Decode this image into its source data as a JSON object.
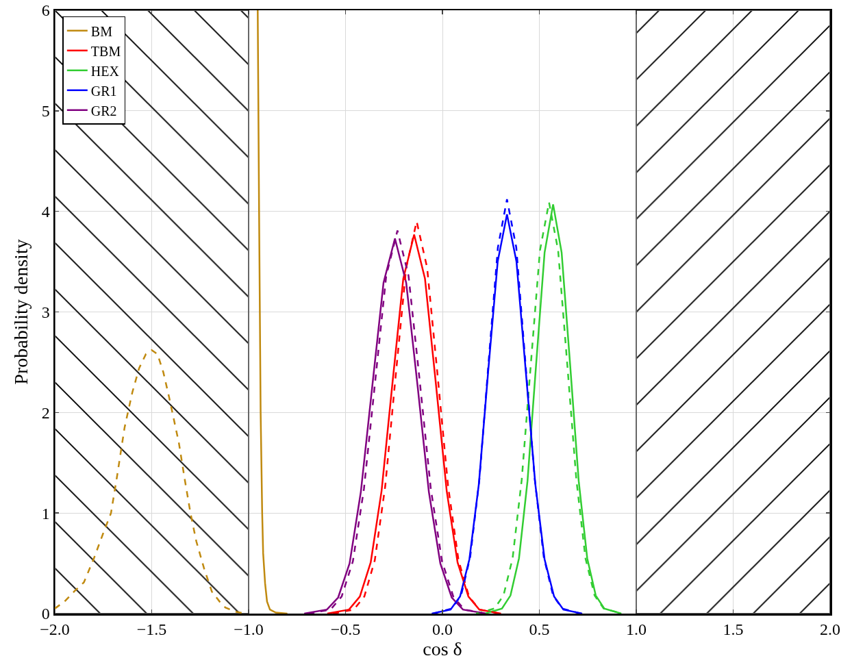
{
  "chart_data": {
    "type": "line",
    "xlabel": "cos δ",
    "ylabel": "Probability density",
    "xlim": [
      -2,
      2
    ],
    "ylim": [
      0,
      6
    ],
    "xticks": [
      {
        "value": -2,
        "label": "−2.0"
      },
      {
        "value": -1.5,
        "label": "−1.5"
      },
      {
        "value": -1,
        "label": "−1.0"
      },
      {
        "value": -0.5,
        "label": "−0.5"
      },
      {
        "value": 0,
        "label": "0.0"
      },
      {
        "value": 0.5,
        "label": "0.5"
      },
      {
        "value": 1,
        "label": "1.0"
      },
      {
        "value": 1.5,
        "label": "1.5"
      },
      {
        "value": 2,
        "label": "2.0"
      }
    ],
    "yticks": [
      0,
      1,
      2,
      3,
      4,
      5,
      6
    ],
    "grid": true,
    "legend": "top left",
    "marker": "none",
    "bands": [
      {
        "axis": "x",
        "from": -2,
        "to": -1,
        "color": "#000000"
      },
      {
        "axis": "x",
        "from": 1,
        "to": 2,
        "color": "#000000"
      }
    ],
    "series": [
      {
        "name": "BM",
        "color": "#c08a10",
        "line_style": "solid",
        "x": [
          -0.953,
          -0.946,
          -0.938,
          -0.93,
          -0.925,
          -0.915,
          -0.905,
          -0.89,
          -0.86,
          -0.8
        ],
        "values": [
          6.0,
          4.0,
          2.0,
          1.0,
          0.6,
          0.3,
          0.12,
          0.04,
          0.01,
          0
        ]
      },
      {
        "name": "TBM",
        "color": "#ff0000",
        "line_style": "solid",
        "x": [
          -0.594,
          -0.482,
          -0.426,
          -0.37,
          -0.314,
          -0.258,
          -0.202,
          -0.146,
          -0.09,
          -0.034,
          0.022,
          0.078,
          0.134,
          0.19,
          0.302
        ],
        "values": [
          0,
          0.04,
          0.17,
          0.51,
          1.22,
          2.29,
          3.33,
          3.77,
          3.33,
          2.29,
          1.22,
          0.51,
          0.17,
          0.04,
          0
        ]
      },
      {
        "name": "HEX",
        "color": "#32cd32",
        "line_style": "solid",
        "x": [
          0.219,
          0.307,
          0.351,
          0.395,
          0.439,
          0.483,
          0.527,
          0.571,
          0.615,
          0.659,
          0.703,
          0.747,
          0.791,
          0.835,
          0.923
        ],
        "values": [
          0,
          0.05,
          0.18,
          0.55,
          1.32,
          2.47,
          3.59,
          4.07,
          3.59,
          2.47,
          1.32,
          0.55,
          0.18,
          0.05,
          0
        ]
      },
      {
        "name": "GR1",
        "color": "#0000ff",
        "line_style": "solid",
        "x": [
          -0.055,
          0.042,
          0.091,
          0.139,
          0.188,
          0.236,
          0.285,
          0.333,
          0.382,
          0.43,
          0.479,
          0.527,
          0.576,
          0.624,
          0.721
        ],
        "values": [
          0,
          0.04,
          0.17,
          0.54,
          1.29,
          2.41,
          3.5,
          3.97,
          3.5,
          2.41,
          1.29,
          0.54,
          0.17,
          0.04,
          0
        ]
      },
      {
        "name": "GR2",
        "color": "#800080",
        "line_style": "solid",
        "x": [
          -0.713,
          -0.596,
          -0.538,
          -0.479,
          -0.421,
          -0.362,
          -0.304,
          -0.245,
          -0.187,
          -0.128,
          -0.07,
          -0.011,
          0.048,
          0.106,
          0.223
        ],
        "values": [
          0,
          0.04,
          0.16,
          0.5,
          1.21,
          2.26,
          3.29,
          3.73,
          3.29,
          2.26,
          1.21,
          0.5,
          0.16,
          0.04,
          0
        ]
      },
      {
        "color": "#c08a10",
        "line_style": "dashed",
        "x": [
          -2.0,
          -1.95,
          -1.9,
          -1.85,
          -1.8,
          -1.75,
          -1.71,
          -1.68,
          -1.64,
          -1.6,
          -1.565,
          -1.53,
          -1.5,
          -1.47,
          -1.44,
          -1.41,
          -1.36,
          -1.33,
          -1.3,
          -1.27,
          -1.23,
          -1.19,
          -1.15,
          -1.12,
          -1.07,
          -1.02
        ],
        "values": [
          0.05,
          0.12,
          0.22,
          0.31,
          0.54,
          0.8,
          1.0,
          1.35,
          1.85,
          2.2,
          2.44,
          2.58,
          2.62,
          2.58,
          2.4,
          2.15,
          1.7,
          1.34,
          1.0,
          0.72,
          0.45,
          0.22,
          0.12,
          0.06,
          0.02,
          0
        ]
      },
      {
        "color": "#ff0000",
        "line_style": "dashed",
        "x": [
          -0.565,
          -0.457,
          -0.403,
          -0.349,
          -0.295,
          -0.241,
          -0.187,
          -0.133,
          -0.079,
          -0.025,
          0.029,
          0.083,
          0.137,
          0.191,
          0.299
        ],
        "values": [
          0,
          0.04,
          0.17,
          0.53,
          1.27,
          2.37,
          3.44,
          3.9,
          3.44,
          2.37,
          1.27,
          0.53,
          0.17,
          0.04,
          0
        ]
      },
      {
        "color": "#32cd32",
        "line_style": "dashed",
        "x": [
          0.174,
          0.268,
          0.315,
          0.362,
          0.409,
          0.456,
          0.503,
          0.55,
          0.597,
          0.644,
          0.691,
          0.738,
          0.785,
          0.832,
          0.926
        ],
        "values": [
          0,
          0.05,
          0.18,
          0.55,
          1.33,
          2.48,
          3.61,
          4.09,
          3.61,
          2.48,
          1.33,
          0.55,
          0.18,
          0.05,
          0
        ]
      },
      {
        "color": "#0000ff",
        "line_style": "dashed",
        "x": [
          -0.047,
          0.048,
          0.096,
          0.143,
          0.191,
          0.238,
          0.286,
          0.333,
          0.381,
          0.428,
          0.476,
          0.523,
          0.571,
          0.618,
          0.713
        ],
        "values": [
          0,
          0.05,
          0.18,
          0.56,
          1.34,
          2.5,
          3.64,
          4.12,
          3.64,
          2.5,
          1.34,
          0.56,
          0.18,
          0.05,
          0
        ]
      },
      {
        "color": "#800080",
        "line_style": "dashed",
        "x": [
          -0.692,
          -0.577,
          -0.52,
          -0.462,
          -0.405,
          -0.347,
          -0.29,
          -0.232,
          -0.175,
          -0.117,
          -0.06,
          -0.002,
          0.056,
          0.113,
          0.228
        ],
        "values": [
          0,
          0.04,
          0.17,
          0.52,
          1.24,
          2.31,
          3.36,
          3.81,
          3.36,
          2.31,
          1.24,
          0.52,
          0.17,
          0.04,
          0
        ]
      }
    ]
  }
}
